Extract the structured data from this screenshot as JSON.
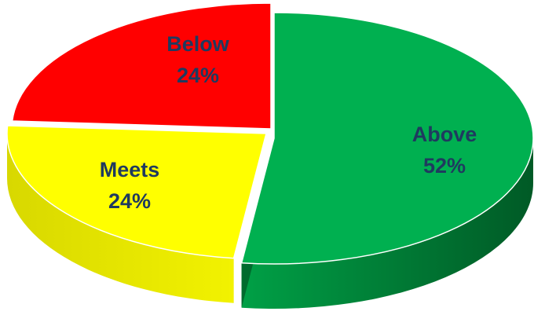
{
  "chart_data": {
    "type": "pie",
    "style": "3d-exploded",
    "title": "",
    "slices": [
      {
        "label": "Above",
        "value": 52,
        "display": "52%",
        "color": "#00b050"
      },
      {
        "label": "Meets",
        "value": 24,
        "display": "24%",
        "color": "#ffff00"
      },
      {
        "label": "Below",
        "value": 24,
        "display": "24%",
        "color": "#ff0000"
      }
    ],
    "label_color": "#1f3a5f",
    "legend": "none"
  }
}
